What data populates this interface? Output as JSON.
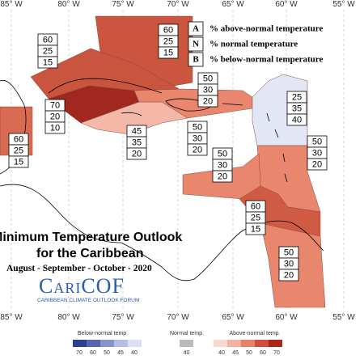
{
  "longitudes_top": [
    "85° W",
    "80° W",
    "75° W",
    "70° W",
    "65° W",
    "60° W",
    "55° W"
  ],
  "longitudes_bottom": [
    "85° W",
    "80° W",
    "75° W",
    "70° W",
    "65° W",
    "60° W",
    "55° W"
  ],
  "legend": [
    {
      "key": "A",
      "text": "% above-normal temperature"
    },
    {
      "key": "N",
      "text": "% normal temperature"
    },
    {
      "key": "B",
      "text": "% below-normal temperature"
    }
  ],
  "regions": [
    {
      "probabilities": [
        60,
        25,
        15
      ]
    },
    {
      "probabilities": [
        60,
        25,
        15
      ]
    },
    {
      "probabilities": [
        70,
        20,
        10
      ]
    },
    {
      "probabilities": [
        60,
        25,
        15
      ]
    },
    {
      "probabilities": [
        45,
        35,
        20
      ]
    },
    {
      "probabilities": [
        50,
        30,
        20
      ]
    },
    {
      "probabilities": [
        50,
        30,
        20
      ]
    },
    {
      "probabilities": [
        25,
        35,
        40
      ]
    },
    {
      "probabilities": [
        50,
        30,
        20
      ]
    },
    {
      "probabilities": [
        50,
        30,
        20
      ]
    },
    {
      "probabilities": [
        60,
        25,
        15
      ]
    },
    {
      "probabilities": [
        50,
        30,
        20
      ]
    }
  ],
  "title": {
    "line1": "Minimum Temperature Outlook",
    "line2": "for the Caribbean",
    "subtitle": "August - September - October - 2020"
  },
  "logo": {
    "name": "CariCOF",
    "tagline": "CARIBBEAN CLIMATE OUTLOOK FORUM"
  },
  "colorbar": {
    "below": {
      "label": "Below-normal temp.",
      "ticks": [
        70,
        60,
        50,
        45,
        40
      ]
    },
    "normal": {
      "label": "Normal temp.",
      "ticks": [
        40
      ]
    },
    "above": {
      "label": "Above-normal temp.",
      "ticks": [
        40,
        45,
        50,
        60,
        70
      ]
    }
  }
}
